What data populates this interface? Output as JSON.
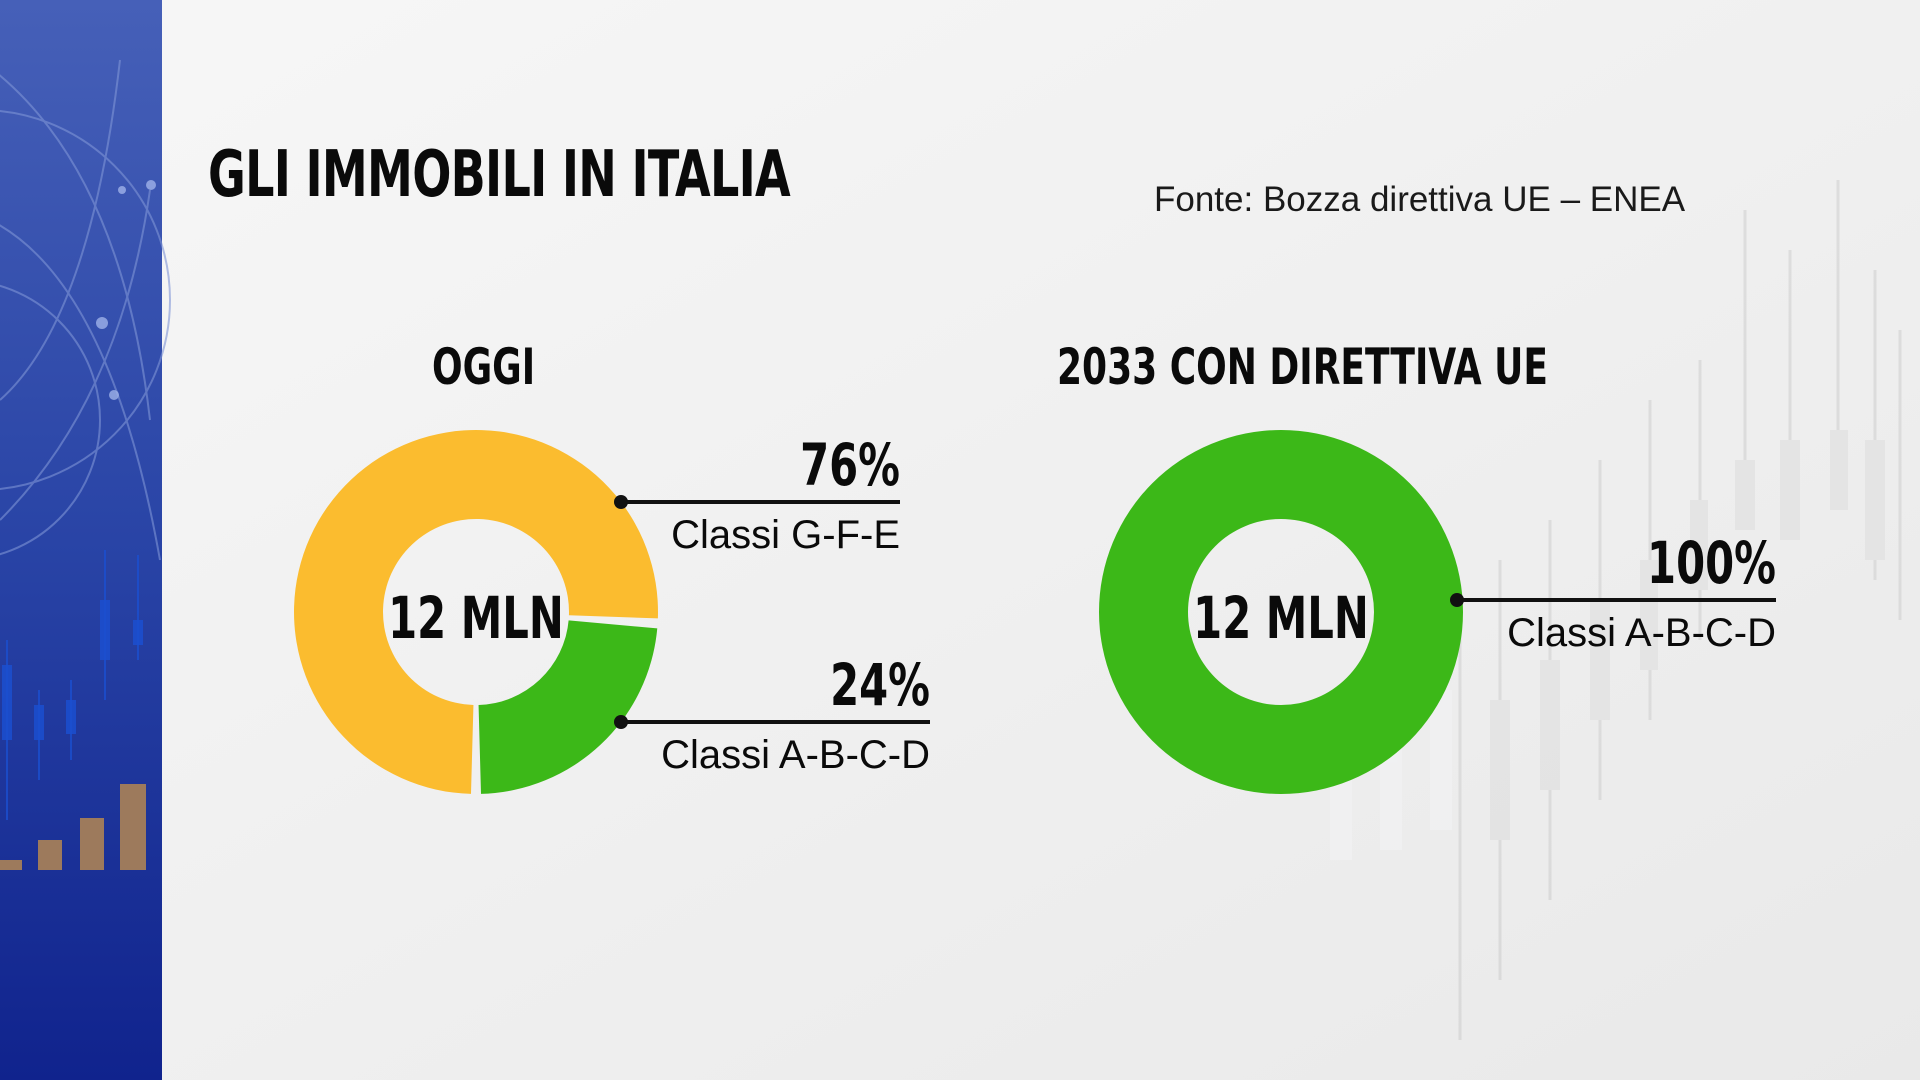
{
  "title": "GLI IMMOBILI IN ITALIA",
  "source": "Fonte:  Bozza direttiva UE – ENEA",
  "colors": {
    "sidebar_top": "#3f5bb5",
    "sidebar_bottom": "#12268f",
    "yellow": "#fbbc2f",
    "green": "#3cb818",
    "text": "#0a0a0a"
  },
  "chart_data": [
    {
      "type": "pie",
      "title": "OGGI",
      "center_label": "12 MLN",
      "slices": [
        {
          "label": "Classi G-F-E",
          "value": 76,
          "value_label": "76%",
          "color": "#fbbc2f"
        },
        {
          "label": "Classi A-B-C-D",
          "value": 24,
          "value_label": "24%",
          "color": "#3cb818"
        }
      ]
    },
    {
      "type": "pie",
      "title": "2033 CON DIRETTIVA UE",
      "center_label": "12 MLN",
      "slices": [
        {
          "label": "Classi A-B-C-D",
          "value": 100,
          "value_label": "100%",
          "color": "#3cb818"
        }
      ]
    }
  ]
}
